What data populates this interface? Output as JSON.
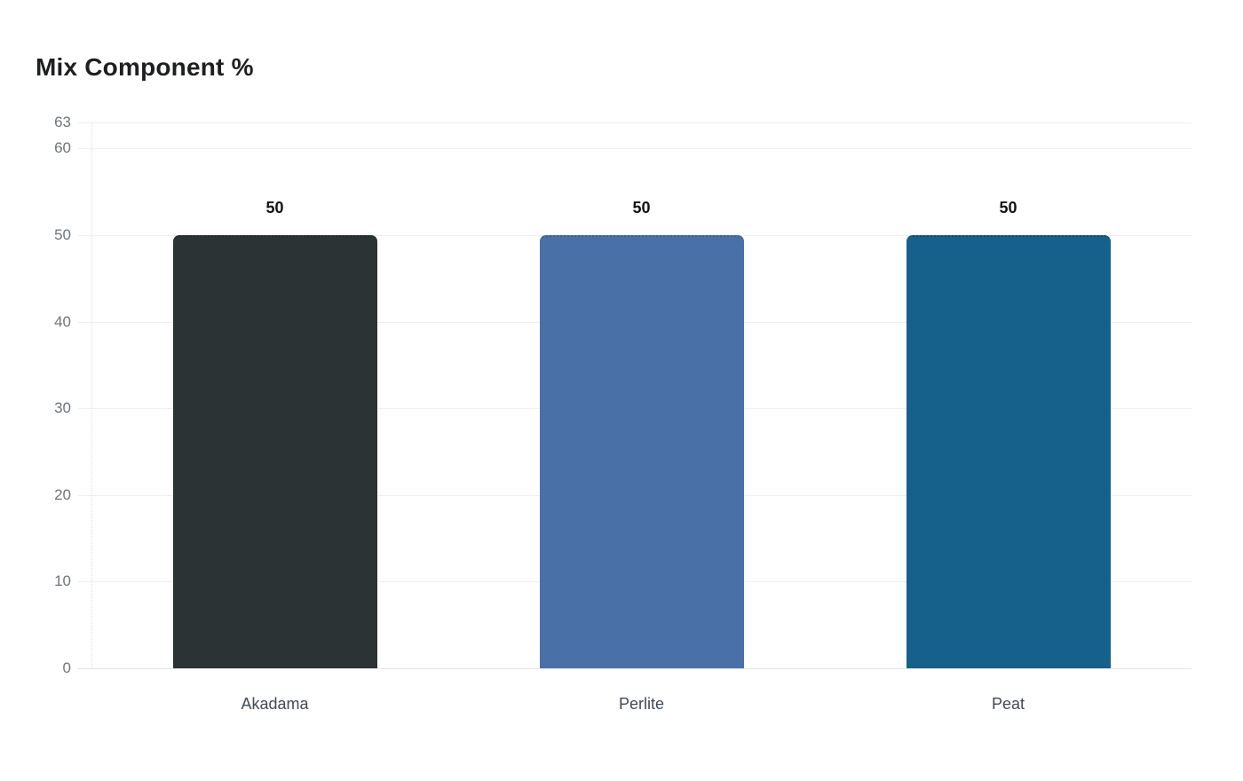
{
  "chart_data": {
    "type": "bar",
    "title": "Mix Component %",
    "categories": [
      "Akadama",
      "Perlite",
      "Peat"
    ],
    "values": [
      50,
      50,
      50
    ],
    "data_labels": [
      "50",
      "50",
      "50"
    ],
    "series_colors": [
      "#2b3334",
      "#4a70a8",
      "#16618c"
    ],
    "bar_top_border_colors": [
      "#20282a",
      "#3c5c8f",
      "#114a68"
    ],
    "yticks": [
      63,
      60,
      50,
      40,
      30,
      20,
      10,
      0
    ],
    "ylim": [
      0,
      63
    ],
    "xlabel": "",
    "ylabel": "",
    "grid": true,
    "legend_position": "none",
    "background_color": "#ffffff",
    "styles": {
      "title_color": "#1d1f21",
      "tick_color": "#6e757c",
      "category_color": "#3f4b55",
      "value_label_color": "#101316",
      "gridline_color": "#eceef0",
      "baseline_color": "#e2e5e8",
      "axis_dotted_color": "#d9dde1"
    }
  }
}
